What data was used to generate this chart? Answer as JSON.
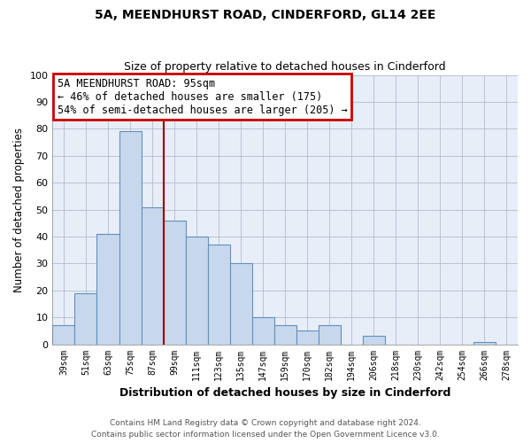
{
  "title": "5A, MEENDHURST ROAD, CINDERFORD, GL14 2EE",
  "subtitle": "Size of property relative to detached houses in Cinderford",
  "xlabel": "Distribution of detached houses by size in Cinderford",
  "ylabel": "Number of detached properties",
  "bar_color": "#c8d8ec",
  "bar_edge_color": "#6090c0",
  "plot_bg_color": "#e8eef8",
  "background_color": "#ffffff",
  "grid_color": "#b0bcd0",
  "bins": [
    "39sqm",
    "51sqm",
    "63sqm",
    "75sqm",
    "87sqm",
    "99sqm",
    "111sqm",
    "123sqm",
    "135sqm",
    "147sqm",
    "159sqm",
    "170sqm",
    "182sqm",
    "194sqm",
    "206sqm",
    "218sqm",
    "230sqm",
    "242sqm",
    "254sqm",
    "266sqm",
    "278sqm"
  ],
  "values": [
    7,
    19,
    41,
    79,
    51,
    46,
    40,
    37,
    30,
    10,
    7,
    5,
    7,
    0,
    3,
    0,
    0,
    0,
    0,
    1,
    0
  ],
  "ylim": [
    0,
    100
  ],
  "yticks": [
    0,
    10,
    20,
    30,
    40,
    50,
    60,
    70,
    80,
    90,
    100
  ],
  "property_line_color": "#990000",
  "annotation_title": "5A MEENDHURST ROAD: 95sqm",
  "annotation_line1": "← 46% of detached houses are smaller (175)",
  "annotation_line2": "54% of semi-detached houses are larger (205) →",
  "annotation_box_color": "#ffffff",
  "annotation_border_color": "#cc0000",
  "footer_line1": "Contains HM Land Registry data © Crown copyright and database right 2024.",
  "footer_line2": "Contains public sector information licensed under the Open Government Licence v3.0."
}
